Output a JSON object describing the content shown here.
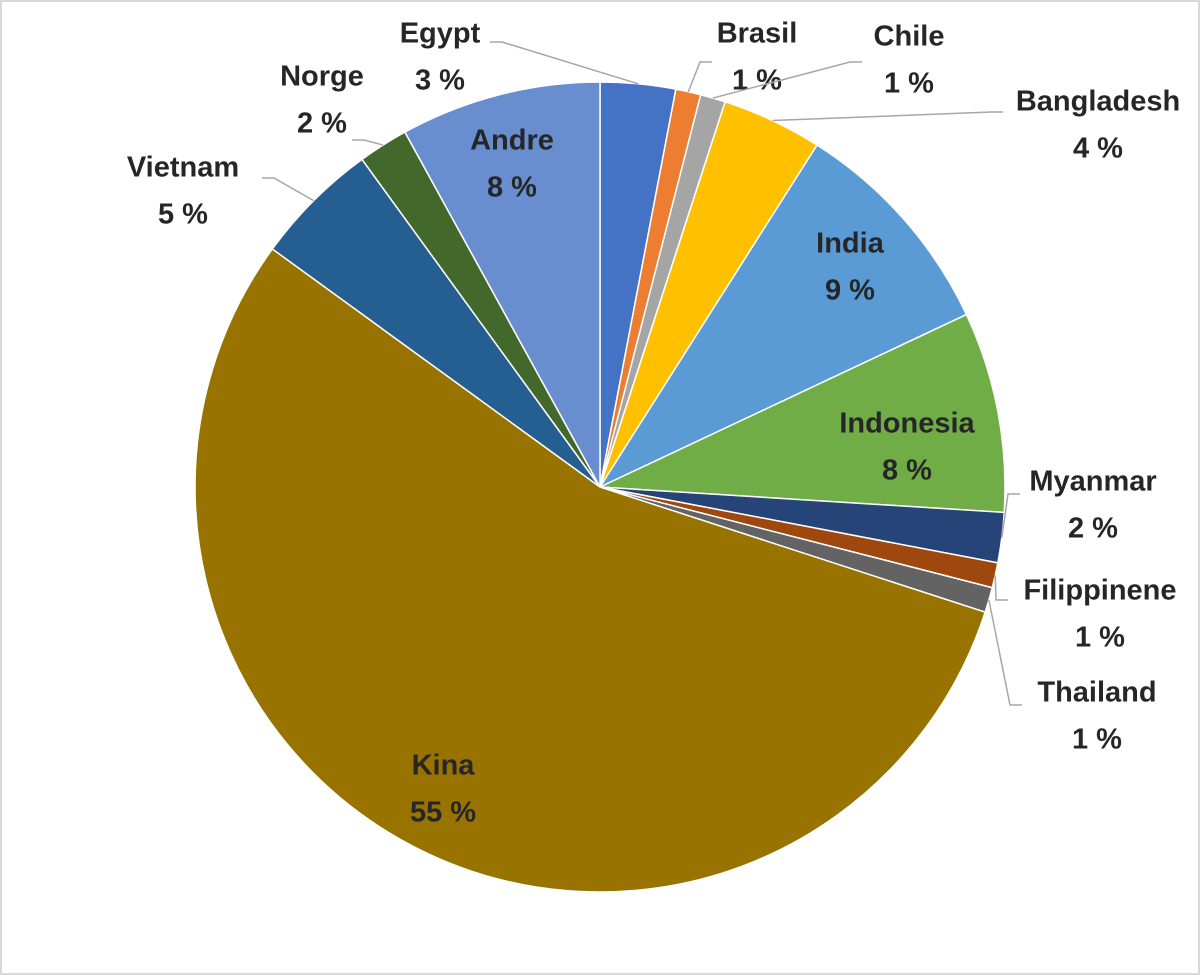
{
  "chart_data": {
    "type": "pie",
    "categories": [
      "Egypt",
      "Brasil",
      "Chile",
      "Bangladesh",
      "India",
      "Indonesia",
      "Myanmar",
      "Filippinene",
      "Thailand",
      "Kina",
      "Vietnam",
      "Norge",
      "Andre"
    ],
    "values": [
      3,
      1,
      1,
      4,
      9,
      8,
      2,
      1,
      1,
      55,
      5,
      2,
      8
    ],
    "value_labels": [
      "3 %",
      "1 %",
      "1 %",
      "4 %",
      "9 %",
      "8 %",
      "2 %",
      "1 %",
      "1 %",
      "55 %",
      "5 %",
      "2 %",
      "8 %"
    ],
    "colors": [
      "#4472c4",
      "#ed7d31",
      "#a5a5a5",
      "#ffc000",
      "#5b9bd5",
      "#70ad47",
      "#264478",
      "#9e480e",
      "#636363",
      "#997300",
      "#255e91",
      "#43682b",
      "#698ed0"
    ]
  }
}
